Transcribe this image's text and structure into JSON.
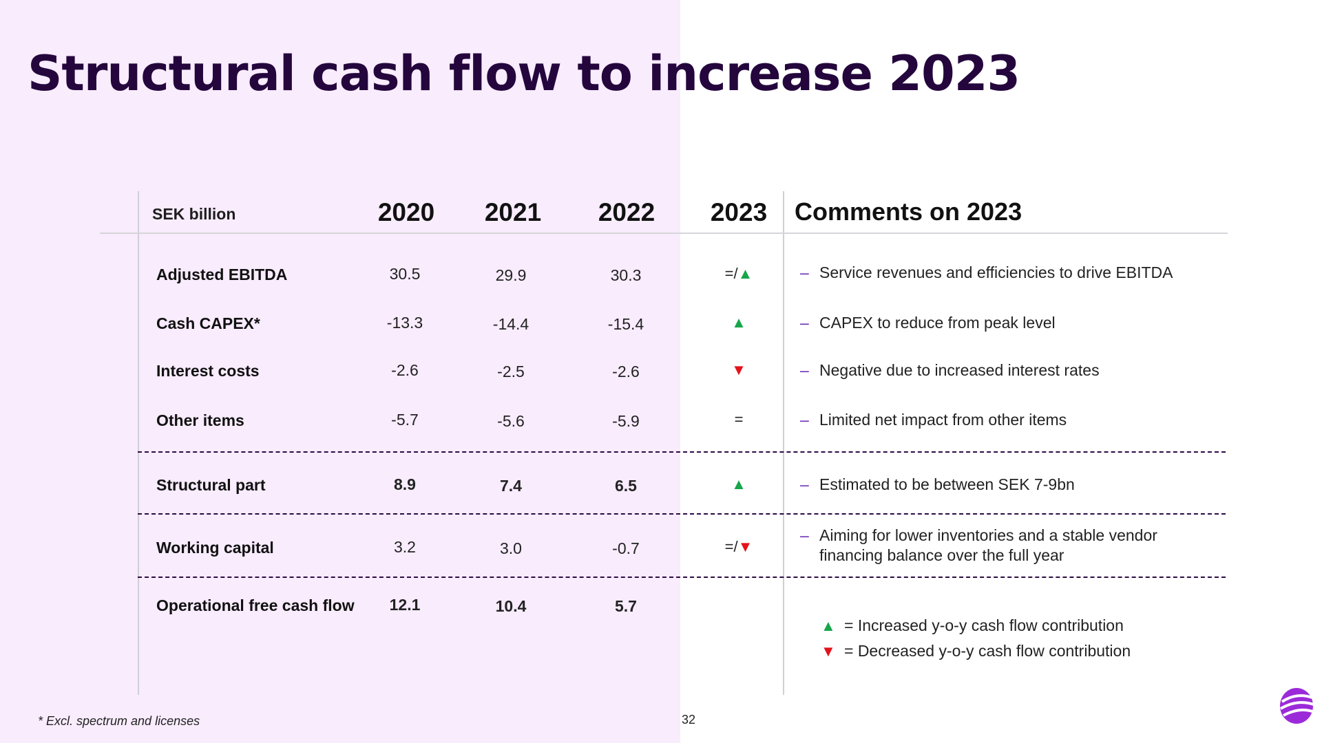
{
  "title": "Structural cash flow to increase 2023",
  "table": {
    "unit_label": "SEK billion",
    "years": [
      "2020",
      "2021",
      "2022",
      "2023"
    ],
    "comments_header": "Comments on 2023",
    "rows": [
      {
        "label": "Adjusted EBITDA",
        "values": [
          "30.5",
          "29.9",
          "30.3"
        ],
        "indicator_prefix": "=/",
        "indicator": "up",
        "comment_lines": [
          "Service revenues and efficiencies to drive EBITDA"
        ]
      },
      {
        "label": "Cash CAPEX*",
        "values": [
          "-13.3",
          "-14.4",
          "-15.4"
        ],
        "indicator_prefix": "",
        "indicator": "up",
        "comment_lines": [
          "CAPEX to reduce from peak level"
        ]
      },
      {
        "label": "Interest costs",
        "values": [
          "-2.6",
          "-2.5",
          "-2.6"
        ],
        "indicator_prefix": "",
        "indicator": "down",
        "comment_lines": [
          "Negative due to increased interest rates"
        ]
      },
      {
        "label": "Other items",
        "values": [
          "-5.7",
          "-5.6",
          "-5.9"
        ],
        "indicator_prefix": "=",
        "indicator": "",
        "comment_lines": [
          "Limited net impact from other items"
        ]
      },
      {
        "label": "Structural part",
        "values": [
          "8.9",
          "7.4",
          "6.5"
        ],
        "indicator_prefix": "",
        "indicator": "up",
        "comment_lines": [
          "Estimated to be between SEK 7-9bn"
        ]
      },
      {
        "label": "Working capital",
        "values": [
          "3.2",
          "3.0",
          "-0.7"
        ],
        "indicator_prefix": "=/",
        "indicator": "down",
        "comment_lines": [
          "Aiming for lower inventories and a stable vendor",
          "financing balance over the full year"
        ]
      },
      {
        "label": "Operational free cash flow",
        "values": [
          "12.1",
          "10.4",
          "5.7"
        ],
        "indicator_prefix": "",
        "indicator": "",
        "comment_lines": []
      }
    ]
  },
  "symbols": {
    "up": "▲",
    "down": "▼",
    "dash": "–"
  },
  "legend": [
    {
      "arrow": "up",
      "text": "= Increased y-o-y cash flow contribution"
    },
    {
      "arrow": "down",
      "text": "= Decreased y-o-y cash flow contribution"
    }
  ],
  "footnote": "* Excl. spectrum and licenses",
  "page_number": "32",
  "colors": {
    "up": "#17a64b",
    "down": "#e3121b",
    "title": "#24063d",
    "brand": "#9b2bd9"
  },
  "logo_icon": "telia-pebble-logo"
}
